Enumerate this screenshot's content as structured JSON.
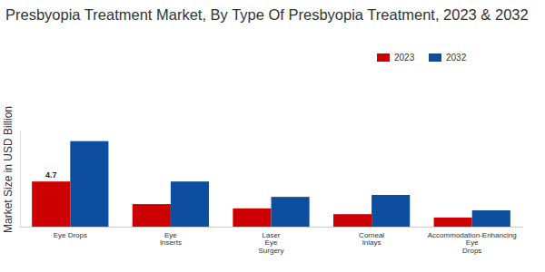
{
  "chart_data": {
    "type": "bar",
    "title": "Presbyopia Treatment Market, By Type Of Presbyopia Treatment, 2023 & 2032",
    "y_label": "Market Size in USD Billion",
    "categories": [
      "Eye Drops",
      "Eye\nInserts",
      "Laser\nEye\nSurgery",
      "Corneal\nInlays",
      "Accommodation-Enhancing\nEye\nDrops"
    ],
    "series": [
      {
        "name": "2023",
        "color": "#cc0000",
        "values": [
          4.7,
          2.35,
          1.9,
          1.3,
          0.95
        ],
        "data_labels": true,
        "value_labels": [
          "4.7",
          null,
          null,
          null,
          null
        ]
      },
      {
        "name": "2032",
        "color": "#0d4f9e",
        "values": [
          8.9,
          4.7,
          3.1,
          3.3,
          1.7
        ]
      }
    ],
    "ylim": [
      0,
      10
    ],
    "tick_labels": "x",
    "grid": false,
    "legend": "top-right"
  }
}
